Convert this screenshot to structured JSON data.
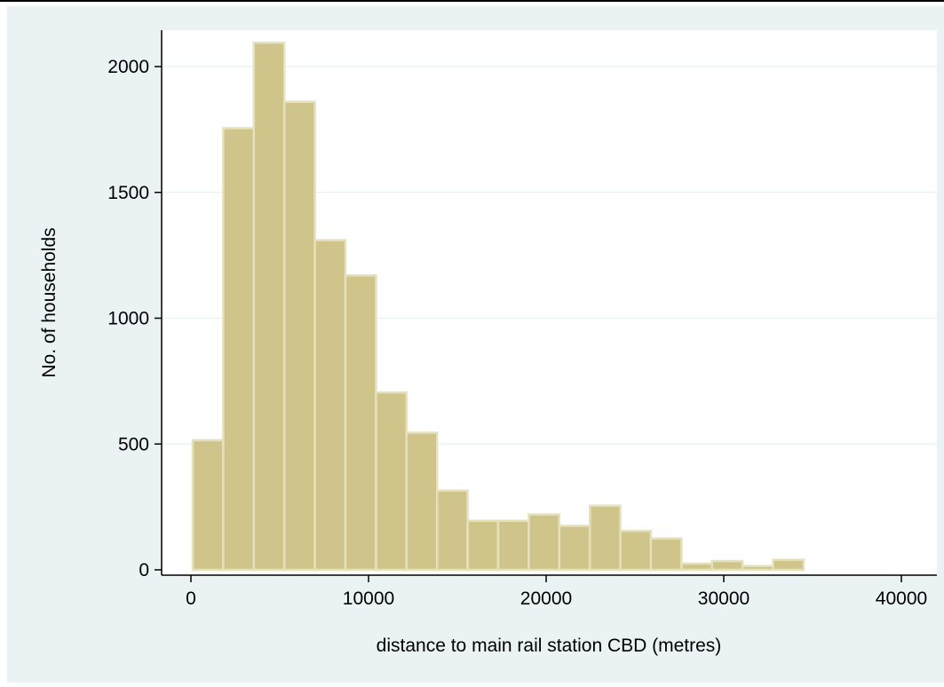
{
  "colors": {
    "outer_bg": "#eaf2f3",
    "plot_bg": "#ffffff",
    "bar_fill": "#cfc58a",
    "bar_stroke": "#e6e1bd",
    "grid": "#e8f0f2",
    "axis": "#000000",
    "text": "#000000"
  },
  "chart_data": {
    "type": "bar",
    "histogram": true,
    "xlabel": "distance to main rail station CBD (metres)",
    "ylabel": "No. of households",
    "xlim": [
      -2000,
      40500
    ],
    "ylim": [
      0,
      2150
    ],
    "x_ticks": [
      0,
      10000,
      20000,
      30000,
      40000
    ],
    "y_ticks": [
      0,
      500,
      1000,
      1500,
      2000
    ],
    "grid": true,
    "bin_width": 1720,
    "bin_start": 100,
    "values": [
      515,
      1755,
      2095,
      1860,
      1310,
      1170,
      705,
      545,
      315,
      195,
      195,
      220,
      175,
      255,
      155,
      125,
      25,
      35,
      15,
      40
    ]
  }
}
